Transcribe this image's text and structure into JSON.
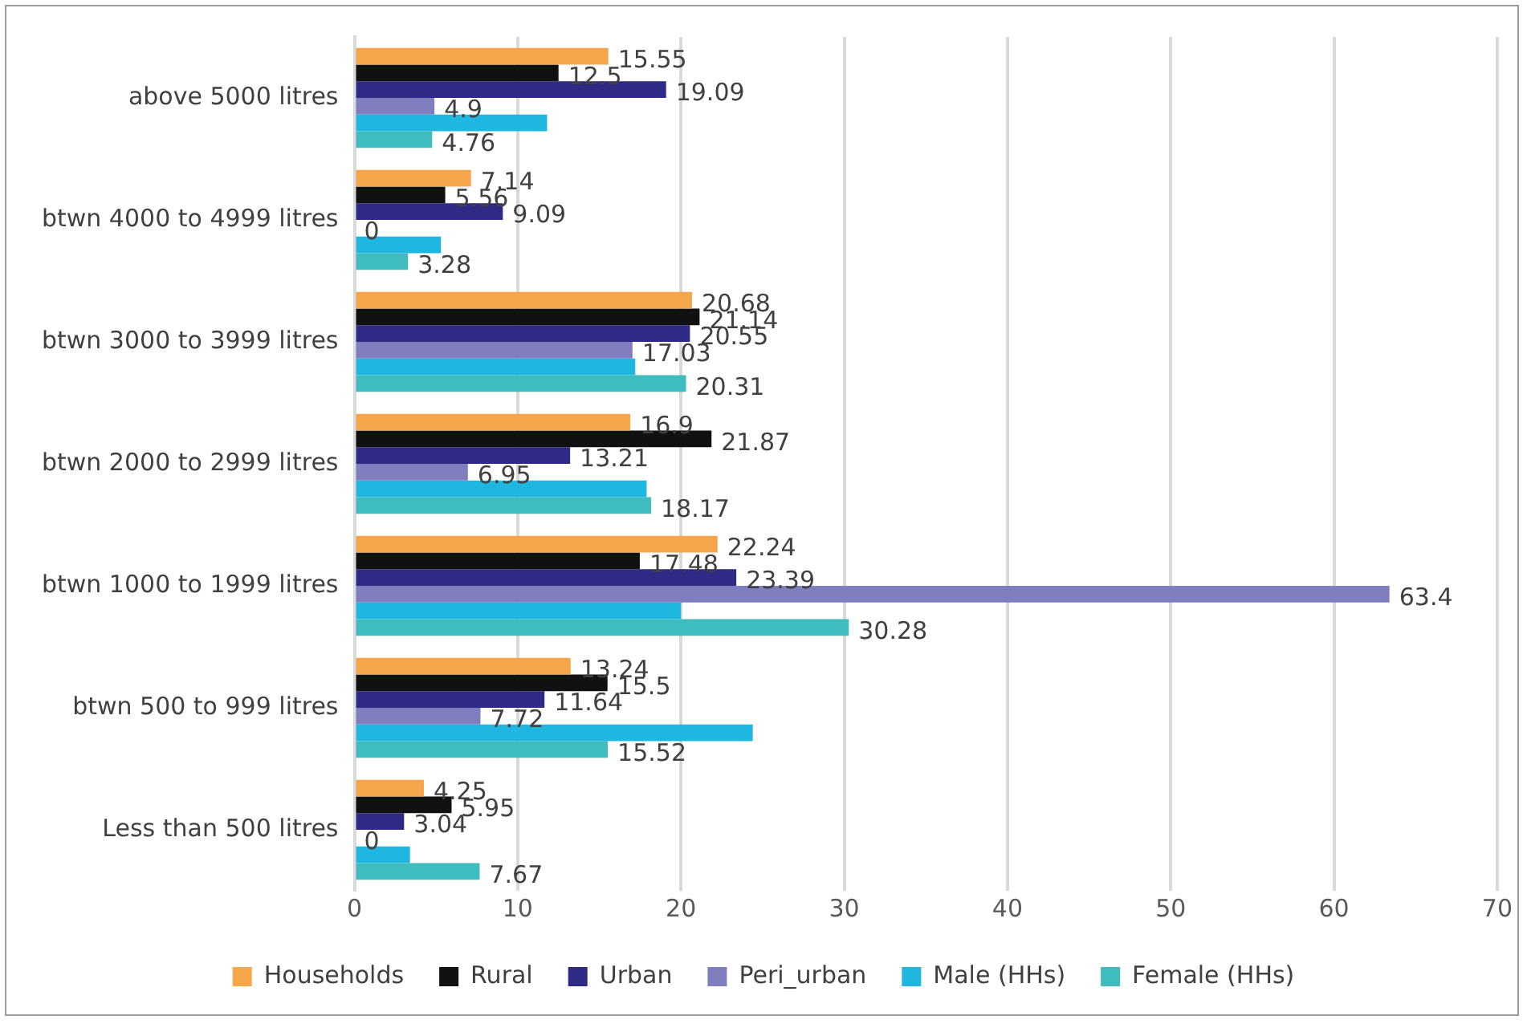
{
  "chart_data": {
    "type": "bar",
    "orientation": "horizontal",
    "categories": [
      "above 5000 litres",
      "btwn 4000 to 4999 litres",
      "btwn 3000 to 3999 litres",
      "btwn 2000 to 2999 litres",
      "btwn 1000 to 1999 litres",
      "btwn 500 to 999 litres",
      "Less than 500 litres"
    ],
    "series": [
      {
        "name": "Households",
        "color": "#f5a54a",
        "values": [
          15.55,
          7.14,
          20.68,
          16.9,
          22.24,
          13.24,
          4.25
        ],
        "value_labels": [
          "15.55",
          "7.14",
          "20.68",
          "16.9",
          "22.24",
          "13.24",
          "4.25"
        ]
      },
      {
        "name": "Rural",
        "color": "#111111",
        "values": [
          12.5,
          5.56,
          21.14,
          21.87,
          17.48,
          15.5,
          5.95
        ],
        "value_labels": [
          "12.5",
          "5.56",
          "21.14",
          "21.87",
          "17.48",
          "15.5",
          "5.95"
        ]
      },
      {
        "name": "Urban",
        "color": "#2e2a86",
        "values": [
          19.09,
          9.09,
          20.55,
          13.21,
          23.39,
          11.64,
          3.04
        ],
        "value_labels": [
          "19.09",
          "9.09",
          "20.55",
          "13.21",
          "23.39",
          "11.64",
          "3.04"
        ]
      },
      {
        "name": "Peri_urban",
        "color": "#7f7fc0",
        "values": [
          4.9,
          0,
          17.03,
          6.95,
          63.4,
          7.72,
          0
        ],
        "value_labels": [
          "4.9",
          "0",
          "17.03",
          "6.95",
          "63.4",
          "7.72",
          "0"
        ]
      },
      {
        "name": "Male (HHs)",
        "color": "#1fb7e0",
        "values": [
          11.8,
          5.3,
          17.2,
          17.9,
          20,
          24.4,
          3.4
        ]
      },
      {
        "name": "Female (HHs)",
        "color": "#3fbcc0",
        "values": [
          4.76,
          3.28,
          20.31,
          18.17,
          30.28,
          15.52,
          7.67
        ],
        "value_labels": [
          "4.76",
          "3.28",
          "20.31",
          "18.17",
          "30.28",
          "15.52",
          "7.67"
        ]
      }
    ],
    "xlim": [
      0,
      70
    ],
    "xticks": [
      0,
      10,
      20,
      30,
      40,
      50,
      60,
      70
    ],
    "grid": "x",
    "legend": "bottom"
  }
}
